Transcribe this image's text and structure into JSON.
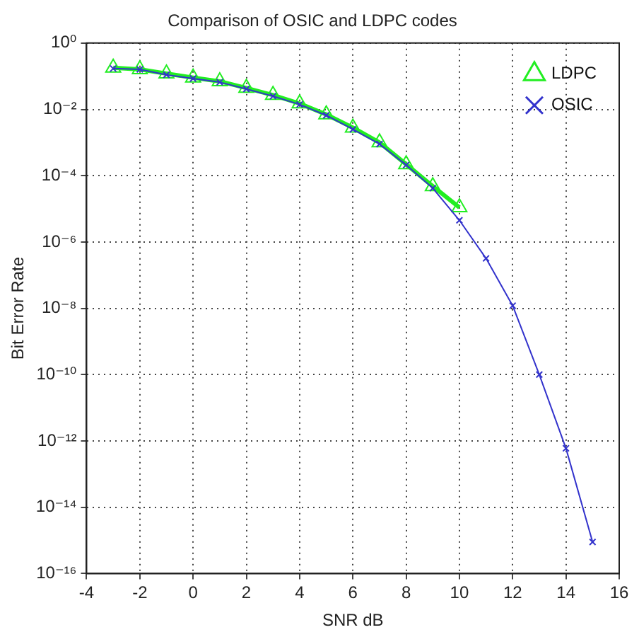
{
  "chart_data": {
    "type": "line",
    "title": "Comparison of OSIC and LDPC codes",
    "xlabel": "SNR dB",
    "ylabel": "Bit Error Rate",
    "x": [
      -3,
      -2,
      -1,
      0,
      1,
      2,
      3,
      4,
      5,
      6,
      7,
      8,
      9,
      10,
      11,
      12,
      13,
      14,
      15
    ],
    "series": [
      {
        "name": "LDPC",
        "color": "#22ee22",
        "marker": "triangle",
        "x": [
          -3,
          -2,
          -1,
          0,
          1,
          2,
          3,
          4,
          5,
          6,
          7,
          8,
          9,
          10
        ],
        "values": [
          0.18,
          0.16,
          0.12,
          0.09,
          0.07,
          0.044,
          0.027,
          0.015,
          0.007,
          0.0028,
          0.001,
          0.00022,
          4.8e-05,
          1.1e-05
        ]
      },
      {
        "name": "OSIC",
        "color": "#3333cc",
        "marker": "cross",
        "values": [
          0.17,
          0.16,
          0.11,
          0.085,
          0.066,
          0.041,
          0.025,
          0.014,
          0.0066,
          0.0025,
          0.0009,
          0.00021,
          4.2e-05,
          4.5e-06,
          3.2e-07,
          1.2e-08,
          1e-10,
          6e-13,
          9e-16
        ]
      }
    ],
    "log": "y",
    "xlim": [
      -4,
      16
    ],
    "xticks": [
      -4,
      -2,
      0,
      2,
      4,
      6,
      8,
      10,
      12,
      14,
      16
    ],
    "ylim": [
      1e-16,
      1
    ],
    "yticks": [
      {
        "value": 1e-16,
        "label": "10⁻¹⁶"
      },
      {
        "value": 1e-14,
        "label": "10⁻¹⁴"
      },
      {
        "value": 1e-12,
        "label": "10⁻¹²"
      },
      {
        "value": 1e-10,
        "label": "10⁻¹⁰"
      },
      {
        "value": 1e-08,
        "label": "10⁻⁸"
      },
      {
        "value": 1e-06,
        "label": "10⁻⁶"
      },
      {
        "value": 0.0001,
        "label": "10⁻⁴"
      },
      {
        "value": 0.01,
        "label": "10⁻²"
      },
      {
        "value": 1,
        "label": "10⁰"
      }
    ],
    "grid": true,
    "legend": "top right"
  }
}
